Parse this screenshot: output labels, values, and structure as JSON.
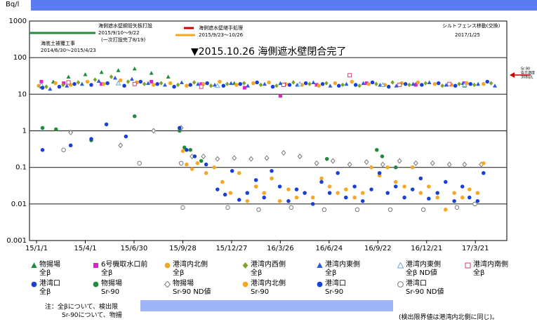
{
  "chart_data": {
    "type": "scatter",
    "y_unit": "Bq/l",
    "log_y": true,
    "grid": true,
    "xlim": [
      "2014-12-19",
      "2017-05-18"
    ],
    "xticks": [
      {
        "value": "2015-01-01",
        "label": "15/1/1"
      },
      {
        "value": "2015-04-01",
        "label": "15/4/1"
      },
      {
        "value": "2015-06-30",
        "label": "15/6/30"
      },
      {
        "value": "2015-09-28",
        "label": "15/9/28"
      },
      {
        "value": "2015-12-27",
        "label": "15/12/27"
      },
      {
        "value": "2016-03-26",
        "label": "16/3/26"
      },
      {
        "value": "2016-06-24",
        "label": "16/6/24"
      },
      {
        "value": "2016-09-22",
        "label": "16/9/22"
      },
      {
        "value": "2016-12-21",
        "label": "16/12/21"
      },
      {
        "value": "2017-03-21",
        "label": "17/3/21"
      }
    ],
    "ylim": [
      0.001,
      1000
    ],
    "yticks": [
      0.001,
      0.01,
      0.1,
      1,
      10,
      100,
      1000
    ],
    "annotations": {
      "closure": "▼2015.10.26 海側遮水壁閉合完了",
      "pile": [
        "海側遮水壁鋼管矢板打設",
        "2015/9/10～9/22",
        "(一次打設完了8/19)"
      ],
      "seabed": [
        "海底土被覆工事",
        "2014/6/30～2015/4/23"
      ],
      "joint": [
        "海側遮水壁継手処理",
        "2015/9/23～10/26"
      ],
      "fence": [
        "シルトフェンス移動(交換)",
        "2017/1/25"
      ],
      "limit": [
        "Sr-90",
        "告示濃度",
        "30Bq/L"
      ]
    },
    "notes": [
      "注：全βについて、検出限",
      "Sr-90について、物揚",
      "(検出限界値は港湾内北側に同じ)。"
    ],
    "series": [
      {
        "name": "物揚場\n全β",
        "color": "#1e8c3a",
        "marker": "triangle",
        "x": [
          "2015-01-10",
          "2015-02-01",
          "2015-03-01",
          "2015-04-01",
          "2015-05-01",
          "2015-06-01",
          "2015-07-01",
          "2015-08-01",
          "2015-09-01",
          "2016-01-01",
          "2016-06-01",
          "2016-12-01",
          "2017-03-01"
        ],
        "values": [
          16,
          22,
          30,
          35,
          40,
          45,
          50,
          38,
          30,
          20,
          18,
          19,
          17
        ]
      },
      {
        "name": "6号機取水口前\n全β",
        "color": "#e020c8",
        "marker": "square",
        "x": [
          "2015-01-10",
          "2015-02-20",
          "2015-05-01",
          "2015-08-01",
          "2015-11-01",
          "2016-01-20",
          "2016-03-26",
          "2016-06-01",
          "2016-09-01",
          "2016-12-01",
          "2017-03-01"
        ],
        "values": [
          22,
          20,
          19,
          22,
          19,
          15,
          9,
          18,
          20,
          18,
          20
        ]
      },
      {
        "name": "港湾内北側\n全β",
        "color": "#f5a623",
        "marker": "circle",
        "x": [
          "2015-01-05",
          "2015-02-05",
          "2015-03-05",
          "2015-04-05",
          "2015-05-05",
          "2015-06-05",
          "2015-07-05",
          "2015-08-05",
          "2015-09-05",
          "2015-10-05",
          "2015-11-05",
          "2015-12-05",
          "2016-01-05",
          "2016-02-05",
          "2016-03-05",
          "2016-04-05",
          "2016-05-05",
          "2016-06-05",
          "2016-07-05",
          "2016-08-05",
          "2016-09-05",
          "2016-10-05",
          "2016-11-05",
          "2016-12-05",
          "2017-01-05",
          "2017-02-05",
          "2017-03-05",
          "2017-04-05"
        ],
        "values": [
          17,
          20,
          18,
          22,
          19,
          24,
          21,
          18,
          20,
          17,
          19,
          22,
          18,
          20,
          21,
          19,
          18,
          17,
          20,
          22,
          19,
          18,
          20,
          21,
          19,
          18,
          20,
          19
        ]
      },
      {
        "name": "港湾内西側\n全β",
        "color": "#7da22a",
        "marker": "diamond",
        "x": [
          "2015-01-19",
          "2015-02-19",
          "2015-03-19",
          "2015-04-19",
          "2015-05-19",
          "2015-06-19",
          "2015-07-19",
          "2015-08-19",
          "2015-09-19",
          "2015-10-19",
          "2015-11-19",
          "2015-12-19",
          "2016-01-19",
          "2016-02-19",
          "2016-03-19",
          "2016-04-19",
          "2016-05-19",
          "2016-06-19",
          "2016-07-19",
          "2016-08-19",
          "2016-09-19",
          "2016-10-19",
          "2016-11-19",
          "2016-12-19",
          "2017-01-19",
          "2017-02-19",
          "2017-03-19",
          "2017-04-19"
        ],
        "values": [
          16,
          18,
          21,
          25,
          30,
          22,
          19,
          20,
          18,
          21,
          17,
          19,
          20,
          18,
          17,
          21,
          19,
          20,
          18,
          17,
          19,
          21,
          18,
          20,
          17,
          19,
          18,
          20
        ]
      },
      {
        "name": "港湾内東側\n全β",
        "color": "#2d5bd6",
        "marker": "triangle",
        "x": [
          "2015-01-26",
          "2015-02-26",
          "2015-03-26",
          "2015-04-26",
          "2015-05-26",
          "2015-06-26",
          "2015-07-26",
          "2015-08-26",
          "2015-09-26",
          "2015-10-26",
          "2015-11-26",
          "2015-12-26",
          "2016-01-26",
          "2016-02-26",
          "2016-03-26",
          "2016-04-26",
          "2016-05-26",
          "2016-06-26",
          "2016-07-26",
          "2016-08-26",
          "2016-09-26",
          "2016-10-26",
          "2016-11-26",
          "2016-12-26",
          "2017-01-26",
          "2017-02-26",
          "2017-03-26",
          "2017-04-26"
        ],
        "values": [
          14,
          17,
          19,
          23,
          28,
          26,
          20,
          18,
          21,
          19,
          18,
          20,
          17,
          19,
          20,
          18,
          21,
          17,
          19,
          20,
          18,
          17,
          19,
          21,
          18,
          20,
          19,
          17
        ]
      },
      {
        "name": "港湾内東側\n全β ND値",
        "color": "#6aa8e0",
        "marker": "triangle-open",
        "x": [
          "2015-01-10",
          "2015-06-01",
          "2015-12-01",
          "2016-05-01",
          "2016-10-01",
          "2017-03-01"
        ],
        "values": [
          18,
          20,
          17,
          19,
          18,
          18
        ]
      },
      {
        "name": "港湾内南側\n全β",
        "color": "#d0406a",
        "marker": "square-open",
        "x": [
          "2015-03-01",
          "2015-07-01",
          "2015-11-01",
          "2016-04-01",
          "2016-08-01",
          "2016-11-01",
          "2017-02-01"
        ],
        "values": [
          21,
          19,
          16,
          18,
          33,
          18,
          19
        ]
      },
      {
        "name": "港湾口\n全β",
        "color": "#1a3fd6",
        "marker": "circle",
        "x": [
          "2015-01-12",
          "2015-02-12",
          "2015-03-12",
          "2015-04-12",
          "2015-05-12",
          "2015-06-12",
          "2015-07-12",
          "2015-08-12",
          "2015-09-12",
          "2015-10-12",
          "2015-11-12",
          "2015-12-12",
          "2016-01-12",
          "2016-02-12",
          "2016-03-12",
          "2016-04-12",
          "2016-05-12",
          "2016-06-12",
          "2016-07-12",
          "2016-08-12",
          "2016-09-12",
          "2016-10-12",
          "2016-11-12",
          "2016-12-12",
          "2017-01-12",
          "2017-02-12",
          "2017-03-12",
          "2017-04-12"
        ],
        "values": [
          15,
          16,
          19,
          18,
          20,
          17,
          22,
          19,
          16,
          18,
          20,
          17,
          19,
          21,
          16,
          18,
          20,
          19,
          17,
          18,
          21,
          16,
          19,
          18,
          20,
          17,
          19,
          22
        ]
      },
      {
        "name": "物揚場\nSr-90",
        "color": "#1e8c3a",
        "marker": "circle",
        "x": [
          "2015-01-12",
          "2015-02-06",
          "2015-04-12",
          "2015-07-01",
          "2015-09-22",
          "2015-10-01",
          "2015-10-12",
          "2015-11-01",
          "2016-06-20",
          "2016-09-20",
          "2016-09-30",
          "2016-10-25"
        ],
        "values": [
          1.2,
          1.1,
          0.55,
          2.5,
          1.0,
          0.35,
          0.3,
          0.15,
          0.17,
          0.3,
          0.2,
          0.1
        ]
      },
      {
        "name": "物揚場\nSr-90 ND値",
        "color": "#777777",
        "marker": "diamond-open",
        "x": [
          "2015-03-05",
          "2015-06-05",
          "2015-08-05",
          "2015-09-25",
          "2015-10-15",
          "2015-11-05",
          "2015-12-01",
          "2016-01-01",
          "2016-02-01",
          "2016-03-01",
          "2016-04-01",
          "2016-05-01",
          "2016-06-01",
          "2016-07-01",
          "2016-08-01",
          "2016-09-01",
          "2016-10-01",
          "2016-11-01",
          "2016-12-01",
          "2017-01-01",
          "2017-02-01",
          "2017-03-01",
          "2017-04-01"
        ],
        "values": [
          0.9,
          0.4,
          1.0,
          1.2,
          0.2,
          0.2,
          0.17,
          0.18,
          0.17,
          0.18,
          0.25,
          0.2,
          0.13,
          0.15,
          0.12,
          0.14,
          0.12,
          0.15,
          0.13,
          0.13,
          0.12,
          0.12,
          0.12
        ]
      },
      {
        "name": "港湾内北側\nSr-90",
        "color": "#f5a623",
        "marker": "circle",
        "x": [
          "2015-09-28",
          "2015-10-05",
          "2015-10-15",
          "2015-10-25",
          "2015-11-10",
          "2015-11-25",
          "2015-12-10",
          "2015-12-25",
          "2016-01-10",
          "2016-01-25",
          "2016-02-10",
          "2016-02-25",
          "2016-03-10",
          "2016-03-25",
          "2016-04-10",
          "2016-04-25",
          "2016-05-10",
          "2016-05-25",
          "2016-06-10",
          "2016-06-25",
          "2016-07-10",
          "2016-07-25",
          "2016-08-10",
          "2016-08-25",
          "2016-09-10",
          "2016-09-25",
          "2016-10-10",
          "2016-10-25",
          "2016-11-10",
          "2016-11-25",
          "2016-12-10",
          "2016-12-25",
          "2017-01-10",
          "2017-01-25",
          "2017-02-10",
          "2017-02-25",
          "2017-03-10",
          "2017-03-25",
          "2017-04-05"
        ],
        "values": [
          0.28,
          0.12,
          0.09,
          0.13,
          0.07,
          0.1,
          0.04,
          0.02,
          0.07,
          0.012,
          0.03,
          0.02,
          0.05,
          0.012,
          0.025,
          0.015,
          0.02,
          0.015,
          0.05,
          0.03,
          0.02,
          0.025,
          0.015,
          0.02,
          0.1,
          0.06,
          0.1,
          0.04,
          0.03,
          0.1,
          0.02,
          0.03,
          0.015,
          0.007,
          0.02,
          0.015,
          0.025,
          0.02,
          0.13
        ]
      },
      {
        "name": "港湾口\nSr-90",
        "color": "#1a3fd6",
        "marker": "circle",
        "x": [
          "2015-01-12",
          "2015-03-05",
          "2015-04-12",
          "2015-05-10",
          "2015-06-15",
          "2015-09-22",
          "2015-10-05",
          "2015-10-20",
          "2015-11-10",
          "2015-12-01",
          "2015-12-15",
          "2015-12-28",
          "2016-01-10",
          "2016-01-25",
          "2016-02-10",
          "2016-02-25",
          "2016-03-10",
          "2016-03-25",
          "2016-04-10",
          "2016-04-25",
          "2016-05-10",
          "2016-05-25",
          "2016-06-10",
          "2016-06-25",
          "2016-07-10",
          "2016-07-25",
          "2016-08-10",
          "2016-08-25",
          "2016-09-10",
          "2016-09-25",
          "2016-10-10",
          "2016-10-25",
          "2016-11-10",
          "2016-11-25",
          "2016-12-10",
          "2016-12-25",
          "2017-01-10",
          "2017-01-25",
          "2017-02-10",
          "2017-02-25",
          "2017-03-10",
          "2017-03-25",
          "2017-04-05"
        ],
        "values": [
          0.3,
          0.4,
          0.6,
          1.5,
          0.7,
          1.2,
          0.3,
          0.2,
          0.12,
          0.025,
          0.018,
          0.08,
          0.013,
          0.02,
          0.045,
          0.015,
          0.08,
          0.03,
          0.012,
          0.025,
          0.02,
          0.01,
          0.04,
          0.02,
          0.07,
          0.015,
          0.03,
          0.012,
          0.025,
          0.07,
          0.02,
          0.03,
          0.015,
          0.025,
          0.05,
          0.014,
          0.02,
          0.04,
          0.012,
          0.03,
          0.015,
          0.012,
          0.07
        ]
      },
      {
        "name": "港湾口\nSr-90 ND値",
        "color": "#777777",
        "marker": "circle-open",
        "x": [
          "2015-02-20",
          "2015-07-10",
          "2015-09-25",
          "2015-09-28",
          "2015-12-20",
          "2016-02-15",
          "2016-04-15",
          "2016-06-15",
          "2016-08-15",
          "2016-10-15",
          "2016-12-15",
          "2017-02-15",
          "2017-03-20"
        ],
        "values": [
          0.3,
          0.13,
          0.13,
          0.008,
          0.008,
          0.007,
          0.008,
          0.007,
          0.007,
          0.007,
          0.007,
          0.008,
          0.01
        ]
      }
    ]
  }
}
